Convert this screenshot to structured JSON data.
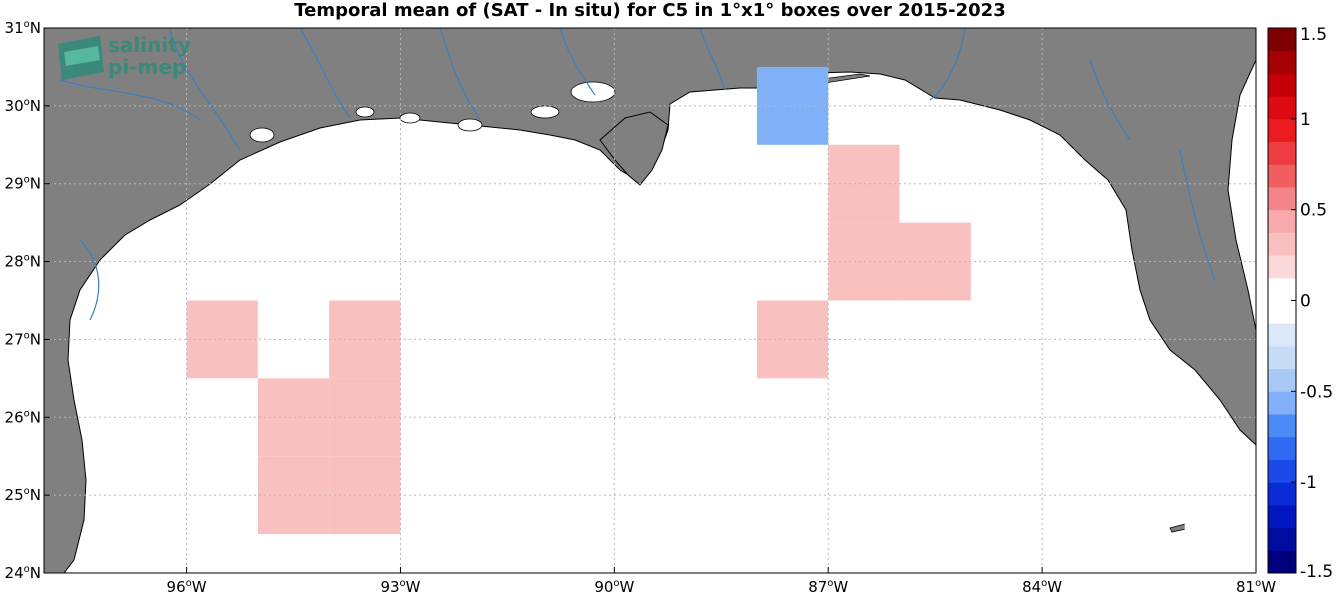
{
  "title": "Temporal mean of (SAT - In situ) for C5 in 1°x1° boxes over 2015-2023",
  "logo": {
    "line1": "salinity",
    "line2": "pi-mep"
  },
  "colors": {
    "land": "#808080",
    "coast": "#000000",
    "river": "#3a7fc1",
    "ocean": "#ffffff",
    "grid": "#b8b8b8",
    "logo_green": "#2e8b7a"
  },
  "axes": {
    "lon_range": [
      -98,
      -81
    ],
    "lat_range": [
      24,
      31
    ],
    "x_ticks": [
      {
        "value": -96,
        "deg": "96",
        "hem": "W"
      },
      {
        "value": -93,
        "deg": "93",
        "hem": "W"
      },
      {
        "value": -90,
        "deg": "90",
        "hem": "W"
      },
      {
        "value": -87,
        "deg": "87",
        "hem": "W"
      },
      {
        "value": -84,
        "deg": "84",
        "hem": "W"
      },
      {
        "value": -81,
        "deg": "81",
        "hem": "W"
      }
    ],
    "y_ticks": [
      {
        "value": 24,
        "deg": "24",
        "hem": "N"
      },
      {
        "value": 25,
        "deg": "25",
        "hem": "N"
      },
      {
        "value": 26,
        "deg": "26",
        "hem": "N"
      },
      {
        "value": 27,
        "deg": "27",
        "hem": "N"
      },
      {
        "value": 28,
        "deg": "28",
        "hem": "N"
      },
      {
        "value": 29,
        "deg": "29",
        "hem": "N"
      },
      {
        "value": 30,
        "deg": "30",
        "hem": "N"
      },
      {
        "value": 31,
        "deg": "31",
        "hem": "N"
      }
    ]
  },
  "colorbar": {
    "range": [
      -1.5,
      1.5
    ],
    "step": 0.125,
    "ticks": [
      {
        "value": 1.5,
        "label": "1.5"
      },
      {
        "value": 1,
        "label": "1"
      },
      {
        "value": 0.5,
        "label": "0.5"
      },
      {
        "value": 0,
        "label": "0"
      },
      {
        "value": -0.5,
        "label": "-0.5"
      },
      {
        "value": -1,
        "label": "-1"
      },
      {
        "value": -1.5,
        "label": "-1.5"
      }
    ]
  },
  "chart_data": {
    "type": "heatmap",
    "title": "Temporal mean of (SAT - In situ) for C5 in 1°x1° boxes over 2015-2023",
    "xlim": [
      -98,
      -81
    ],
    "ylim": [
      24,
      31
    ],
    "clim": [
      -1.5,
      1.5
    ],
    "cell_size_deg": 1,
    "cells": [
      {
        "lon": -87.5,
        "lat": 30.0,
        "v": -0.55
      },
      {
        "lon": -88.5,
        "lat": 29.0,
        "v": -0.1
      },
      {
        "lon": -86.5,
        "lat": 29.0,
        "v": 0.28
      },
      {
        "lon": -95.5,
        "lat": 28.0,
        "v": -0.1
      },
      {
        "lon": -93.5,
        "lat": 28.0,
        "v": 0.12
      },
      {
        "lon": -92.5,
        "lat": 28.0,
        "v": 0.12
      },
      {
        "lon": -89.5,
        "lat": 28.0,
        "v": -0.1
      },
      {
        "lon": -87.5,
        "lat": 28.0,
        "v": 0.12
      },
      {
        "lon": -86.5,
        "lat": 28.0,
        "v": 0.28
      },
      {
        "lon": -85.5,
        "lat": 28.0,
        "v": 0.28
      },
      {
        "lon": -96.5,
        "lat": 27.0,
        "v": 0.12
      },
      {
        "lon": -95.5,
        "lat": 27.0,
        "v": 0.3
      },
      {
        "lon": -94.5,
        "lat": 27.0,
        "v": 0.12
      },
      {
        "lon": -93.5,
        "lat": 27.0,
        "v": 0.28
      },
      {
        "lon": -92.5,
        "lat": 27.0,
        "v": 0.12
      },
      {
        "lon": -88.5,
        "lat": 27.0,
        "v": 0.12
      },
      {
        "lon": -87.5,
        "lat": 27.0,
        "v": 0.3
      },
      {
        "lon": -86.5,
        "lat": 27.0,
        "v": 0.12
      },
      {
        "lon": -85.5,
        "lat": 27.0,
        "v": 0.12
      },
      {
        "lon": -95.5,
        "lat": 26.0,
        "v": 0.12
      },
      {
        "lon": -94.5,
        "lat": 26.0,
        "v": 0.28
      },
      {
        "lon": -93.5,
        "lat": 26.0,
        "v": 0.28
      },
      {
        "lon": -92.5,
        "lat": 26.0,
        "v": 0.12
      },
      {
        "lon": -91.5,
        "lat": 26.0,
        "v": 0.12
      },
      {
        "lon": -90.5,
        "lat": 26.0,
        "v": 0.12
      },
      {
        "lon": -89.5,
        "lat": 26.0,
        "v": 0.12
      },
      {
        "lon": -86.5,
        "lat": 26.0,
        "v": 0.12
      },
      {
        "lon": -85.5,
        "lat": 26.0,
        "v": 0.12
      },
      {
        "lon": -84.5,
        "lat": 26.0,
        "v": 0.12
      },
      {
        "lon": -83.5,
        "lat": 26.0,
        "v": 0.12
      },
      {
        "lon": -95.5,
        "lat": 25.0,
        "v": 0.12
      },
      {
        "lon": -94.5,
        "lat": 25.0,
        "v": 0.28
      },
      {
        "lon": -93.5,
        "lat": 25.0,
        "v": 0.28
      },
      {
        "lon": -92.5,
        "lat": 25.0,
        "v": 0.12
      },
      {
        "lon": -91.5,
        "lat": 25.0,
        "v": 0.12
      },
      {
        "lon": -90.5,
        "lat": 25.0,
        "v": 0.12
      },
      {
        "lon": -88.5,
        "lat": 25.0,
        "v": 0.12
      },
      {
        "lon": -87.5,
        "lat": 25.0,
        "v": 0.12
      },
      {
        "lon": -86.5,
        "lat": 25.0,
        "v": 0.12
      },
      {
        "lon": -85.5,
        "lat": 25.0,
        "v": 0.12
      },
      {
        "lon": -83.0,
        "lat": 25.0,
        "v": 0.12
      },
      {
        "lon": -81.5,
        "lat": 25.0,
        "v": -0.1
      }
    ]
  }
}
